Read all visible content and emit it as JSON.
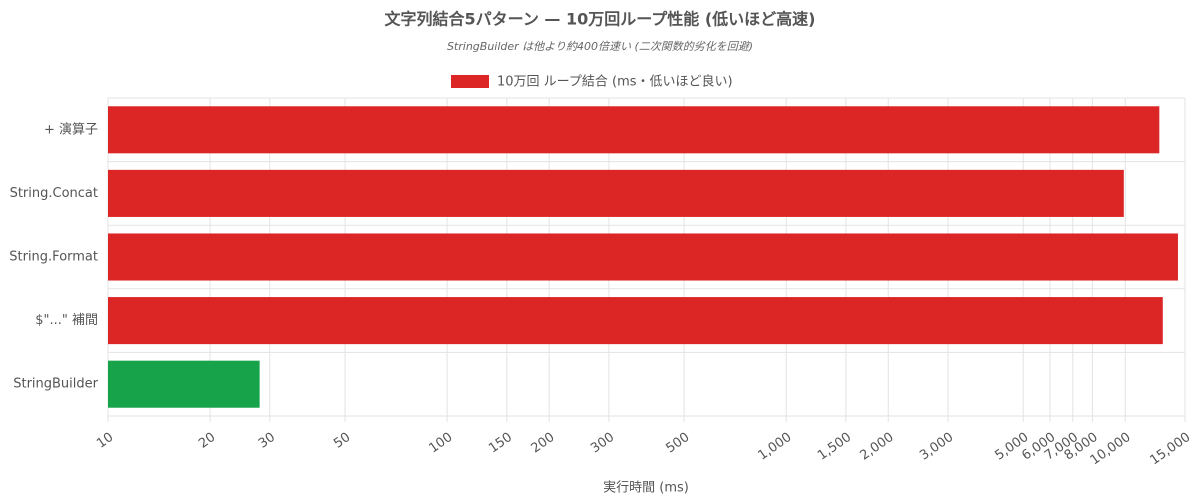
{
  "chart_data": {
    "type": "hbar",
    "title": "文字列結合5パターン — 10万回ループ性能 (低いほど高速)",
    "subtitle": "StringBuilder は他より約400倍速い (二次関数的劣化を回避)",
    "x_label": "実行時間 (ms)",
    "categories": [
      "+ 演算子",
      "String.Concat",
      "String.Format",
      "$\"...\" 補間",
      "StringBuilder"
    ],
    "series": [
      {
        "name": "10万回 ループ結合 (ms・低いほど良い)",
        "color": "#dc2626",
        "colors": [
          "#dc2626",
          "#dc2626",
          "#dc2626",
          "#dc2626",
          "#16a34a"
        ],
        "values": [
          12600,
          9900,
          14300,
          12900,
          28
        ]
      }
    ],
    "xscale": "log",
    "xlim": [
      10,
      15000
    ],
    "xticks": [
      10,
      20,
      30,
      50,
      100,
      150,
      200,
      300,
      500,
      {
        "value": 1000,
        "label": "1,000"
      },
      {
        "value": 1500,
        "label": "1,500"
      },
      {
        "value": 2000,
        "label": "2,000"
      },
      {
        "value": 3000,
        "label": "3,000"
      },
      {
        "value": 5000,
        "label": "5,000"
      },
      {
        "value": 6000,
        "label": "6,000"
      },
      {
        "value": 7000,
        "label": "7,000"
      },
      {
        "value": 8000,
        "label": "8,000"
      },
      {
        "value": 10000,
        "label": "10,000"
      },
      {
        "value": 15000,
        "label": "15,000"
      }
    ],
    "grid": true,
    "legend": "top"
  }
}
